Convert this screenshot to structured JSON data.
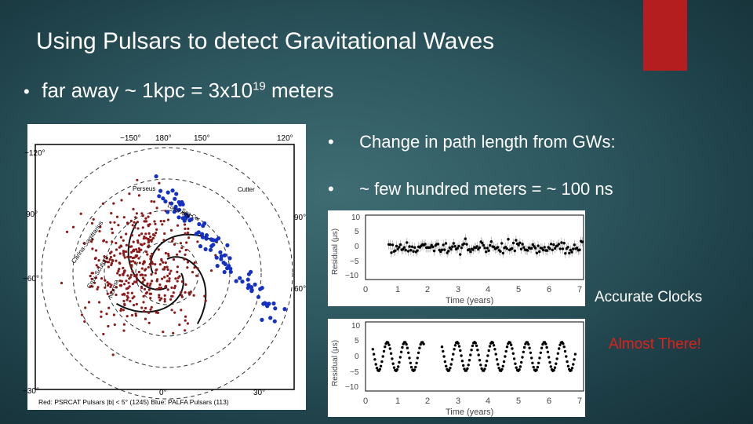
{
  "slide": {
    "title": "Using Pulsars to detect Gravitational Waves",
    "accent_color": "#b41e1e"
  },
  "bullets": {
    "distance": {
      "prefix": "far away ~ 1kpc = 3x10",
      "exponent": "19",
      "suffix": " meters"
    },
    "path_change": "Change in path length from GWs:",
    "amount": "~ few hundred meters = ~ 100 ns"
  },
  "notes": {
    "accurate": "Accurate Clocks",
    "almost": "Almost There!",
    "almost_color": "#e0201a"
  },
  "galaxy_map": {
    "top_longitudes": [
      "−150°",
      "180°",
      "150°",
      "120°"
    ],
    "left_longitudes": [
      "−120°",
      "90°",
      "−60°",
      "−30°"
    ],
    "right_longitudes": [
      "90°",
      "60°"
    ],
    "bottom_longitudes": [
      "0°",
      "30°"
    ],
    "arm_labels": [
      "Perseus",
      "Cutter",
      "Local Arm",
      "Sag-Car",
      "Carina-Sagittarius",
      "Crux-Scutum",
      "Norma"
    ],
    "caption": "Red: PSRCAT Pulsars |b| < 5° (1245)  Blue: PALFA Pulsars (113)",
    "red_color": "#8b1a1a",
    "blue_color": "#1531c4"
  },
  "residual_plots": {
    "y_label": "Residual (μs)",
    "x_label": "Time (years)",
    "y_ticks": [
      "10",
      "5",
      "0",
      "−5",
      "−10"
    ],
    "x_ticks": [
      "0",
      "1",
      "2",
      "3",
      "4",
      "5",
      "6",
      "7"
    ]
  },
  "chart_data": [
    {
      "type": "scatter",
      "title": "",
      "xlabel": "Time (years)",
      "ylabel": "Residual (μs)",
      "xlim": [
        0,
        7.5
      ],
      "ylim": [
        -12,
        12
      ],
      "description_series": [
        {
          "name": "flat residuals",
          "y_amplitude": 0,
          "noise": 2.5
        }
      ]
    },
    {
      "type": "scatter",
      "title": "",
      "xlabel": "Time (years)",
      "ylabel": "Residual (μs)",
      "xlim": [
        0,
        7.5
      ],
      "ylim": [
        -12,
        12
      ],
      "description_series": [
        {
          "name": "sinusoidal residuals",
          "y_amplitude": 5,
          "period_years": 0.6
        }
      ]
    }
  ]
}
